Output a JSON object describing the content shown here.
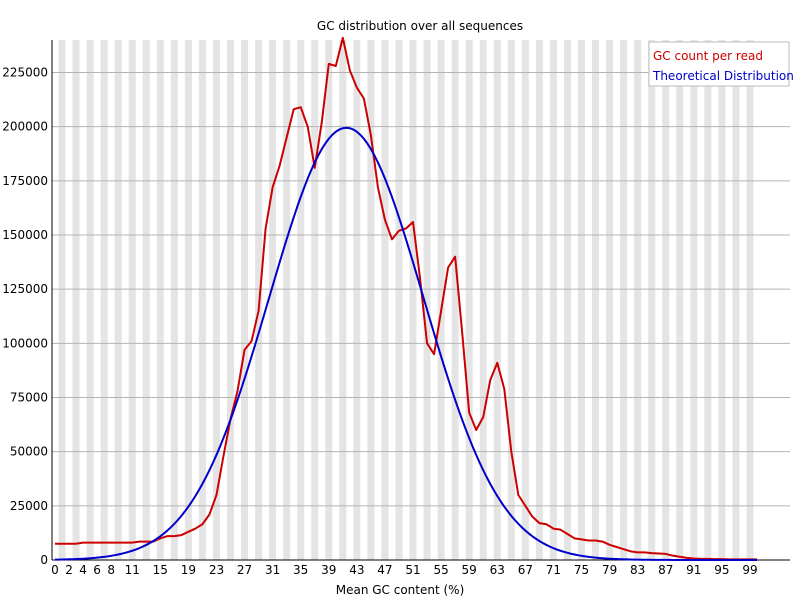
{
  "chart_data": {
    "type": "line",
    "title": "GC distribution over all sequences",
    "xlabel": "Mean GC content (%)",
    "ylabel": "",
    "xlim": [
      0,
      100
    ],
    "ylim": [
      0,
      240000
    ],
    "grid": true,
    "legend_position": "top-right",
    "x_ticks": [
      "0",
      "2",
      "4",
      "6",
      "8",
      "11",
      "15",
      "19",
      "23",
      "27",
      "31",
      "35",
      "39",
      "43",
      "47",
      "51",
      "55",
      "59",
      "63",
      "67",
      "71",
      "75",
      "79",
      "83",
      "87",
      "91",
      "95",
      "99"
    ],
    "y_ticks": [
      "0",
      "25000",
      "50000",
      "75000",
      "100000",
      "125000",
      "150000",
      "175000",
      "200000",
      "225000"
    ],
    "series": [
      {
        "name": "GC count per read",
        "color": "#cc0000",
        "points": [
          [
            0,
            7500
          ],
          [
            1,
            7500
          ],
          [
            2,
            7500
          ],
          [
            3,
            7500
          ],
          [
            4,
            8000
          ],
          [
            5,
            8000
          ],
          [
            6,
            8000
          ],
          [
            7,
            8000
          ],
          [
            8,
            8000
          ],
          [
            9,
            8000
          ],
          [
            10,
            8000
          ],
          [
            11,
            8000
          ],
          [
            12,
            8500
          ],
          [
            13,
            8500
          ],
          [
            14,
            8500
          ],
          [
            15,
            10000
          ],
          [
            16,
            11000
          ],
          [
            17,
            11000
          ],
          [
            18,
            11500
          ],
          [
            19,
            13000
          ],
          [
            20,
            14500
          ],
          [
            21,
            16500
          ],
          [
            22,
            21000
          ],
          [
            23,
            30000
          ],
          [
            24,
            48000
          ],
          [
            25,
            65000
          ],
          [
            26,
            78000
          ],
          [
            27,
            97000
          ],
          [
            28,
            101000
          ],
          [
            29,
            115000
          ],
          [
            30,
            153000
          ],
          [
            31,
            172000
          ],
          [
            32,
            182000
          ],
          [
            33,
            195000
          ],
          [
            34,
            208000
          ],
          [
            35,
            209000
          ],
          [
            36,
            200000
          ],
          [
            37,
            181000
          ],
          [
            38,
            202000
          ],
          [
            39,
            229000
          ],
          [
            40,
            228000
          ],
          [
            41,
            241000
          ],
          [
            42,
            226000
          ],
          [
            43,
            218000
          ],
          [
            44,
            213000
          ],
          [
            45,
            196000
          ],
          [
            46,
            172000
          ],
          [
            47,
            157000
          ],
          [
            48,
            148000
          ],
          [
            49,
            152000
          ],
          [
            50,
            153000
          ],
          [
            51,
            156000
          ],
          [
            52,
            130000
          ],
          [
            53,
            100000
          ],
          [
            54,
            95000
          ],
          [
            55,
            115000
          ],
          [
            56,
            135000
          ],
          [
            57,
            140000
          ],
          [
            58,
            105000
          ],
          [
            59,
            68000
          ],
          [
            60,
            60000
          ],
          [
            61,
            66000
          ],
          [
            62,
            83000
          ],
          [
            63,
            91000
          ],
          [
            64,
            79000
          ],
          [
            65,
            50000
          ],
          [
            66,
            30000
          ],
          [
            67,
            25000
          ],
          [
            68,
            20000
          ],
          [
            69,
            17000
          ],
          [
            70,
            16500
          ],
          [
            71,
            14500
          ],
          [
            72,
            14000
          ],
          [
            73,
            12000
          ],
          [
            74,
            10000
          ],
          [
            75,
            9500
          ],
          [
            76,
            9000
          ],
          [
            77,
            9000
          ],
          [
            78,
            8500
          ],
          [
            79,
            7000
          ],
          [
            80,
            6000
          ],
          [
            81,
            5000
          ],
          [
            82,
            4000
          ],
          [
            83,
            3500
          ],
          [
            84,
            3500
          ],
          [
            85,
            3200
          ],
          [
            86,
            3000
          ],
          [
            87,
            2800
          ],
          [
            88,
            2000
          ],
          [
            89,
            1500
          ],
          [
            90,
            1000
          ],
          [
            91,
            700
          ],
          [
            92,
            500
          ],
          [
            93,
            500
          ],
          [
            94,
            400
          ],
          [
            95,
            400
          ],
          [
            96,
            300
          ],
          [
            97,
            300
          ],
          [
            98,
            300
          ],
          [
            99,
            300
          ],
          [
            100,
            300
          ]
        ]
      },
      {
        "name": "Theoretical Distribution",
        "color": "#0000cc",
        "model": {
          "mean": 41.5,
          "sd": 11,
          "peak": 199500
        },
        "x_range": [
          0,
          100
        ]
      }
    ]
  }
}
